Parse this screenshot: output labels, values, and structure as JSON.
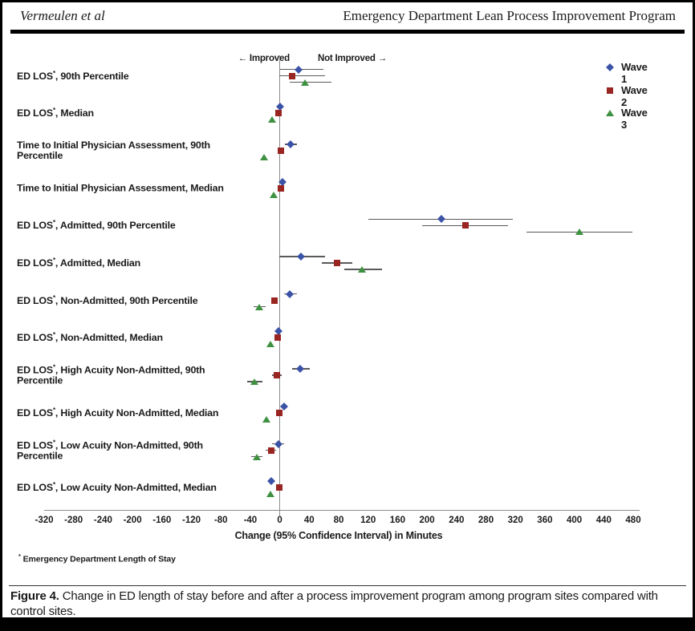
{
  "header": {
    "author": "Vermeulen et al",
    "running_title": "Emergency Department Lean Process Improvement Program"
  },
  "footnote": {
    "symbol": "*",
    "text": "Emergency Department Length of Stay"
  },
  "caption": {
    "label": "Figure 4.",
    "text": "Change in ED length of stay before and after a process improvement program among program sites compared with control sites."
  },
  "chart_data": {
    "type": "scatter",
    "subtype": "horizontal-forest-plot-with-95ci",
    "xlabel": "Change (95% Confidence Interval) in Minutes",
    "xlim": [
      -320,
      480
    ],
    "x_tick_step": 40,
    "grid": false,
    "annotations": {
      "left": "← Improved",
      "right": "Not Improved →"
    },
    "legend_position": "top-right",
    "series": [
      {
        "name": "Wave 1",
        "shape": "diamond",
        "color": "#3A53A6"
      },
      {
        "name": "Wave 2",
        "shape": "square",
        "color": "#992522"
      },
      {
        "name": "Wave 3",
        "shape": "triangle",
        "color": "#3F9142"
      }
    ],
    "colors": {
      "ci_line": "#595959",
      "axis": "#8c8c8c",
      "text": "#1a1a1a"
    },
    "rows": [
      {
        "label": "ED LOS*, 90th Percentile",
        "points": [
          {
            "series": "Wave 1",
            "value": 25,
            "ci": [
              0,
              59
            ]
          },
          {
            "series": "Wave 2",
            "value": 17,
            "ci": [
              -1,
              62
            ]
          },
          {
            "series": "Wave 3",
            "value": 34,
            "ci": [
              13,
              70
            ]
          }
        ]
      },
      {
        "label": "ED LOS*, Median",
        "points": [
          {
            "series": "Wave 1",
            "value": 0,
            "ci": null
          },
          {
            "series": "Wave 2",
            "value": -2,
            "ci": null
          },
          {
            "series": "Wave 3",
            "value": -10,
            "ci": null
          }
        ]
      },
      {
        "label": "Time to Initial Physician Assessment, 90th Percentile",
        "points": [
          {
            "series": "Wave 1",
            "value": 15,
            "ci": [
              7,
              23
            ]
          },
          {
            "series": "Wave 2",
            "value": 2,
            "ci": null
          },
          {
            "series": "Wave 3",
            "value": -21,
            "ci": null
          }
        ]
      },
      {
        "label": "Time to Initial Physician Assessment, Median",
        "points": [
          {
            "series": "Wave 1",
            "value": 4,
            "ci": null
          },
          {
            "series": "Wave 2",
            "value": 2,
            "ci": null
          },
          {
            "series": "Wave 3",
            "value": -8,
            "ci": null
          }
        ]
      },
      {
        "label": "ED LOS*, Admitted, 90th Percentile",
        "points": [
          {
            "series": "Wave 1",
            "value": 220,
            "ci": [
              120,
              317
            ]
          },
          {
            "series": "Wave 2",
            "value": 252,
            "ci": [
              193,
              310
            ]
          },
          {
            "series": "Wave 3",
            "value": 407,
            "ci": [
              335,
              479
            ]
          }
        ]
      },
      {
        "label": "ED LOS*, Admitted, Median",
        "points": [
          {
            "series": "Wave 1",
            "value": 29,
            "ci": [
              -1,
              61
            ]
          },
          {
            "series": "Wave 2",
            "value": 78,
            "ci": [
              57,
              99
            ]
          },
          {
            "series": "Wave 3",
            "value": 112,
            "ci": [
              88,
              139
            ]
          }
        ]
      },
      {
        "label": "ED LOS*, Non-Admitted, 90th Percentile",
        "points": [
          {
            "series": "Wave 1",
            "value": 13,
            "ci": [
              6,
              23
            ]
          },
          {
            "series": "Wave 2",
            "value": -7,
            "ci": null
          },
          {
            "series": "Wave 3",
            "value": -28,
            "ci": [
              -36,
              -19
            ]
          }
        ]
      },
      {
        "label": "ED LOS*, Non-Admitted, Median",
        "points": [
          {
            "series": "Wave 1",
            "value": -2,
            "ci": null
          },
          {
            "series": "Wave 2",
            "value": -3,
            "ci": null
          },
          {
            "series": "Wave 3",
            "value": -13,
            "ci": null
          }
        ]
      },
      {
        "label": "ED LOS*, High Acuity Non-Admitted, 90th Percentile",
        "points": [
          {
            "series": "Wave 1",
            "value": 28,
            "ci": [
              17,
              41
            ]
          },
          {
            "series": "Wave 2",
            "value": -4,
            "ci": [
              -10,
              3
            ]
          },
          {
            "series": "Wave 3",
            "value": -34,
            "ci": [
              -44,
              -24
            ]
          }
        ]
      },
      {
        "label": "ED LOS*, High Acuity Non-Admitted, Median",
        "points": [
          {
            "series": "Wave 1",
            "value": 6,
            "ci": null
          },
          {
            "series": "Wave 2",
            "value": -1,
            "ci": null
          },
          {
            "series": "Wave 3",
            "value": -18,
            "ci": null
          }
        ]
      },
      {
        "label": "ED LOS*, Low Acuity Non-Admitted, 90th Percentile",
        "points": [
          {
            "series": "Wave 1",
            "value": -2,
            "ci": [
              -10,
              6
            ]
          },
          {
            "series": "Wave 2",
            "value": -12,
            "ci": [
              -19,
              -5
            ]
          },
          {
            "series": "Wave 3",
            "value": -31,
            "ci": [
              -39,
              -23
            ]
          }
        ]
      },
      {
        "label": "ED LOS*, Low Acuity Non-Admitted, Median",
        "points": [
          {
            "series": "Wave 1",
            "value": -12,
            "ci": null
          },
          {
            "series": "Wave 2",
            "value": -1,
            "ci": null
          },
          {
            "series": "Wave 3",
            "value": -13,
            "ci": null
          }
        ]
      }
    ]
  }
}
